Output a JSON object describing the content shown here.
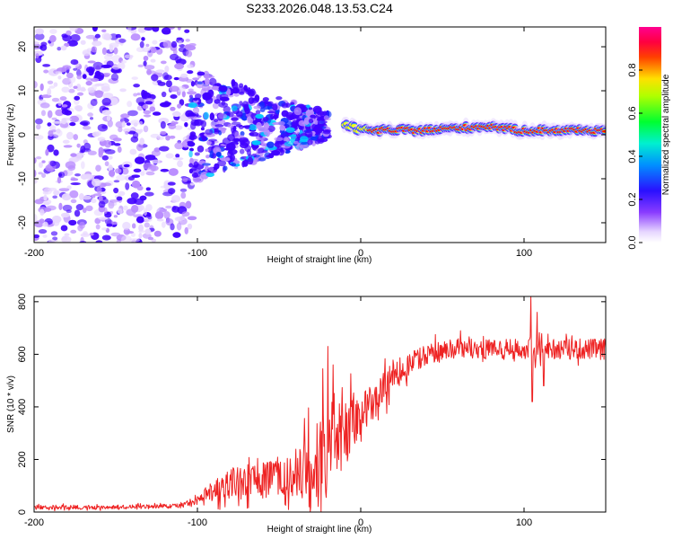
{
  "title": "S233.2026.048.13.53.C24",
  "chart_data": [
    {
      "type": "heatmap",
      "name": "spectrogram",
      "xlabel": "Height of straight line (km)",
      "ylabel": "Frequency (Hz)",
      "xlim": [
        -200,
        150
      ],
      "ylim": [
        -24.5,
        24.5
      ],
      "xticks": [
        -200,
        -100,
        0,
        100
      ],
      "yticks": [
        20,
        10,
        0,
        -10,
        -20
      ],
      "colorbar": {
        "label": "Normalized spectral amplitude",
        "range": [
          0,
          1
        ],
        "ticks": [
          "0.0",
          "0.2",
          "0.4",
          "0.6",
          "0.8"
        ],
        "tick_values": [
          0,
          0.2,
          0.4,
          0.6,
          0.8
        ]
      },
      "colors": [
        "#ffffff",
        "#e8d8ff",
        "#b98cff",
        "#7a2cff",
        "#4000ff",
        "#1030ff",
        "#00c8ff",
        "#00ff60",
        "#ffff00",
        "#ff8000",
        "#ff0000",
        "#ff0090"
      ],
      "regions": [
        {
          "x_range": [
            -200,
            -103
          ],
          "freq_range": [
            -24.5,
            24.5
          ],
          "level": "low",
          "amplitude": [
            0.05,
            0.2
          ]
        },
        {
          "x_range": [
            -105,
            -20
          ],
          "freq_range": [
            -10,
            10
          ],
          "level": "moderate",
          "amplitude": [
            0.1,
            0.3
          ]
        },
        {
          "x_range": [
            -10,
            150
          ],
          "freq_center": 1,
          "freq_halfwidth": 2,
          "level": "high",
          "amplitude": [
            0.8,
            1.0
          ]
        }
      ],
      "ridge": [
        {
          "x": -15,
          "freq": 3
        },
        {
          "x": 0,
          "freq": 1
        },
        {
          "x": 40,
          "freq": 1
        },
        {
          "x": 80,
          "freq": 2
        },
        {
          "x": 95,
          "freq": 1
        },
        {
          "x": 150,
          "freq": 1
        }
      ]
    },
    {
      "type": "line",
      "name": "snr",
      "xlabel": "Height of straight line (km)",
      "ylabel": "SNR (10 * v/v)",
      "xlim": [
        -200,
        150
      ],
      "ylim": [
        0,
        820
      ],
      "xticks": [
        -200,
        -100,
        0,
        100
      ],
      "yticks": [
        0,
        200,
        400,
        600,
        800
      ],
      "color": "#ee2222",
      "trend": {
        "x": [
          -200,
          -130,
          -110,
          -100,
          -90,
          -80,
          -60,
          -40,
          -30,
          -20,
          -15,
          -10,
          -5,
          0,
          10,
          20,
          30,
          40,
          60,
          100,
          150
        ],
        "y": [
          18,
          20,
          25,
          45,
          80,
          110,
          120,
          135,
          160,
          230,
          300,
          330,
          350,
          370,
          440,
          520,
          570,
          600,
          620,
          620,
          620
        ]
      },
      "noise_amplitude": {
        "x": [
          -200,
          -110,
          -100,
          -80,
          -40,
          -25,
          -15,
          -5,
          0,
          20,
          40,
          150
        ],
        "y": [
          8,
          8,
          20,
          60,
          80,
          200,
          160,
          120,
          80,
          60,
          40,
          40
        ]
      },
      "spikes": [
        {
          "x": -20,
          "y": 630
        },
        {
          "x": -17,
          "y": 560
        },
        {
          "x": 104,
          "y": 820
        },
        {
          "x": 105,
          "y": 420
        },
        {
          "x": 108,
          "y": 760
        },
        {
          "x": 112,
          "y": 480
        }
      ]
    }
  ]
}
